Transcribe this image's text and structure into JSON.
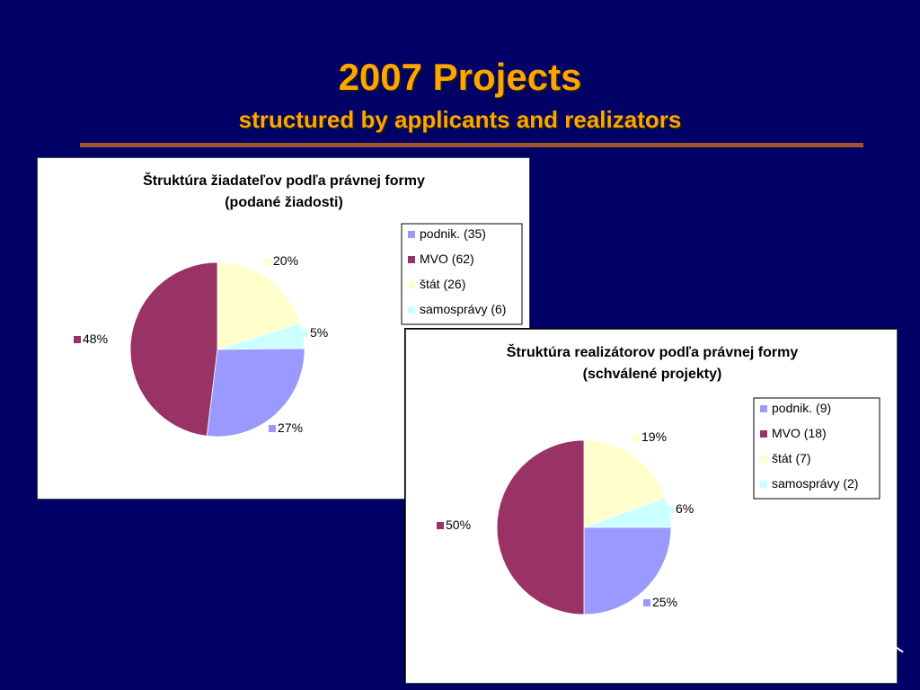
{
  "slide": {
    "title": "2007 Projects",
    "subtitle": "structured by applicants and realizators"
  },
  "colors": {
    "background": "#000066",
    "title": "#FFA500",
    "rule": "#A0522D"
  },
  "chart_data": [
    {
      "type": "pie",
      "title_line1": "Štruktúra žiadateľov podľa právnej formy",
      "title_line2": "(podané žiadosti)",
      "legend_position": "right",
      "slices": [
        {
          "label": "podnik. (35)",
          "value": 35,
          "percent": "27%",
          "color": "#9999FF"
        },
        {
          "label": "MVO (62)",
          "value": 62,
          "percent": "48%",
          "color": "#993366"
        },
        {
          "label": "štát (26)",
          "value": 26,
          "percent": "20%",
          "color": "#FFFFCC"
        },
        {
          "label": "samosprávy (6)",
          "value": 6,
          "percent": "5%",
          "color": "#CCFFFF"
        }
      ]
    },
    {
      "type": "pie",
      "title_line1": "Štruktúra realizátorov podľa právnej formy",
      "title_line2": "(schválené projekty)",
      "legend_position": "right",
      "slices": [
        {
          "label": "podnik. (9)",
          "value": 9,
          "percent": "25%",
          "color": "#9999FF"
        },
        {
          "label": "MVO (18)",
          "value": 18,
          "percent": "50%",
          "color": "#993366"
        },
        {
          "label": "štát (7)",
          "value": 7,
          "percent": "19%",
          "color": "#FFFFCC"
        },
        {
          "label": "samosprávy (2)",
          "value": 2,
          "percent": "6%",
          "color": "#CCFFFF"
        }
      ]
    }
  ]
}
